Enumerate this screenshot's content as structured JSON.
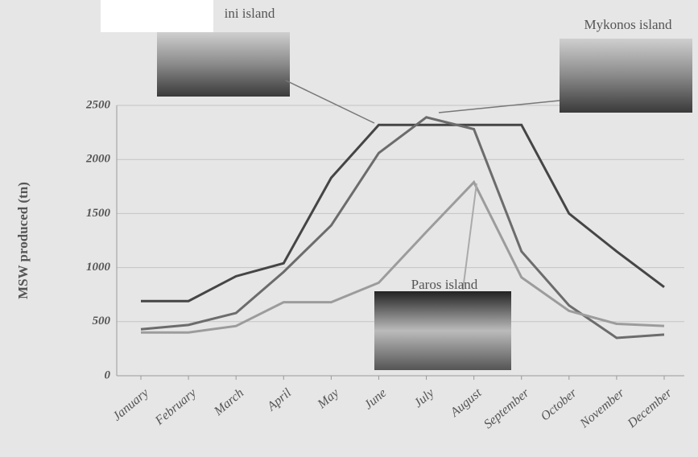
{
  "chart_data": {
    "type": "line",
    "y_label": "MSW produced (tn)",
    "categories": [
      "January",
      "February",
      "March",
      "April",
      "May",
      "June",
      "July",
      "August",
      "September",
      "October",
      "November",
      "December"
    ],
    "series": [
      {
        "name": "ini island",
        "color": "#454545",
        "values": [
          690,
          690,
          920,
          1040,
          1830,
          2320,
          2320,
          2320,
          2320,
          1500,
          1150,
          820
        ]
      },
      {
        "name": "Mykonos island",
        "color": "#6c6c6c",
        "values": [
          430,
          470,
          580,
          960,
          1390,
          2060,
          2390,
          2280,
          1150,
          650,
          350,
          380
        ]
      },
      {
        "name": "Paros island",
        "color": "#9c9c9c",
        "values": [
          400,
          400,
          460,
          680,
          680,
          860,
          1330,
          1790,
          910,
          600,
          480,
          460
        ]
      }
    ],
    "ylim": [
      0,
      2500
    ],
    "yticks": [
      0,
      500,
      1000,
      1500,
      2000,
      2500
    ],
    "grid": true
  }
}
